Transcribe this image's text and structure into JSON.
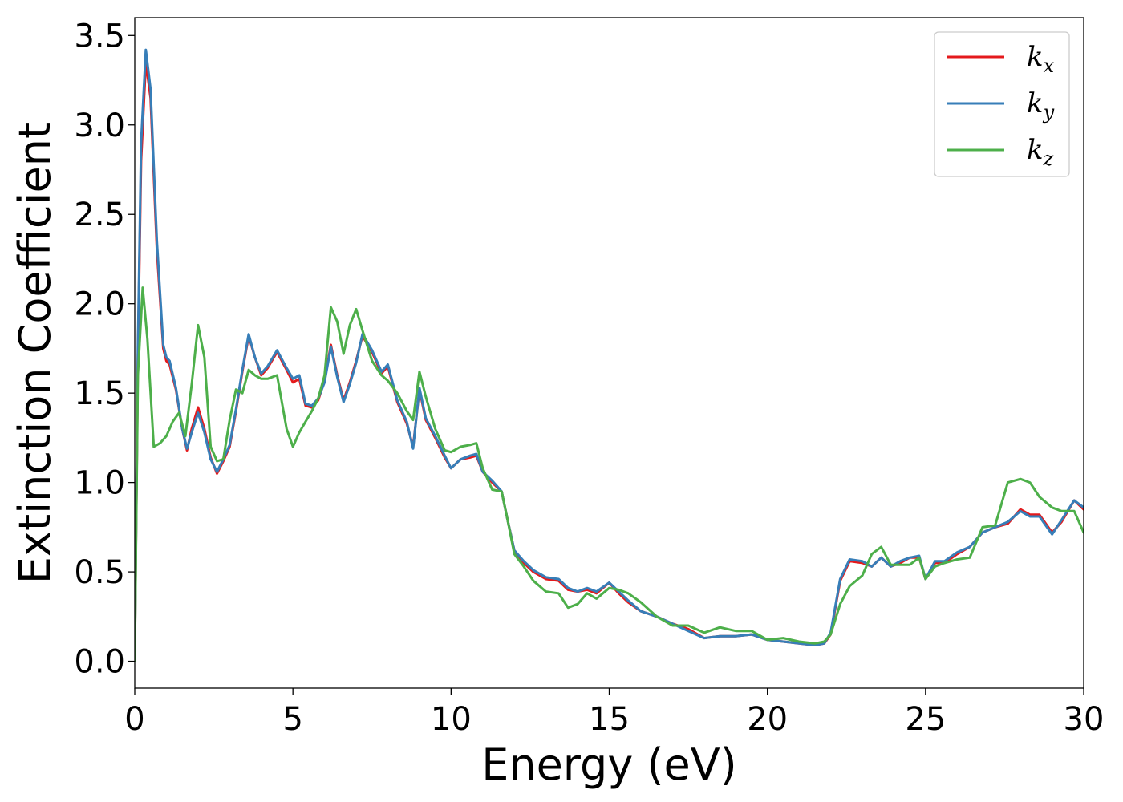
{
  "chart_data": {
    "type": "line",
    "xlabel": "Energy (eV)",
    "ylabel": "Extinction Coefficient",
    "xlim": [
      0,
      30
    ],
    "ylim": [
      -0.15,
      3.6
    ],
    "x_ticks": [
      0,
      5,
      10,
      15,
      20,
      25,
      30
    ],
    "x_tick_labels": [
      "0",
      "5",
      "10",
      "15",
      "20",
      "25",
      "30"
    ],
    "y_ticks": [
      0.0,
      0.5,
      1.0,
      1.5,
      2.0,
      2.5,
      3.0,
      3.5
    ],
    "y_tick_labels": [
      "0.0",
      "0.5",
      "1.0",
      "1.5",
      "2.0",
      "2.5",
      "3.0",
      "3.5"
    ],
    "grid": false,
    "legend_position": "top-right",
    "series": [
      {
        "name": "k",
        "subscript": "x",
        "color": "#e41a1c",
        "x": [
          0,
          0.1,
          0.2,
          0.35,
          0.5,
          0.7,
          0.9,
          1.0,
          1.1,
          1.3,
          1.5,
          1.65,
          1.8,
          2.0,
          2.2,
          2.4,
          2.6,
          2.8,
          3.0,
          3.2,
          3.4,
          3.6,
          3.8,
          4.0,
          4.2,
          4.5,
          4.8,
          5.0,
          5.2,
          5.4,
          5.6,
          5.8,
          6.0,
          6.2,
          6.4,
          6.6,
          6.8,
          7.0,
          7.2,
          7.5,
          7.8,
          8.0,
          8.3,
          8.6,
          8.8,
          9.0,
          9.2,
          9.5,
          9.8,
          10.0,
          10.3,
          10.6,
          10.8,
          11.0,
          11.3,
          11.6,
          11.8,
          12.0,
          12.3,
          12.6,
          13.0,
          13.4,
          13.7,
          14.0,
          14.3,
          14.6,
          15.0,
          15.3,
          15.6,
          16.0,
          16.5,
          17.0,
          17.5,
          18.0,
          18.5,
          19.0,
          19.5,
          20.0,
          20.5,
          21.0,
          21.5,
          21.8,
          22.0,
          22.3,
          22.6,
          23.0,
          23.3,
          23.6,
          23.9,
          24.2,
          24.5,
          24.8,
          25.0,
          25.3,
          25.6,
          26.0,
          26.4,
          26.8,
          27.2,
          27.6,
          28.0,
          28.3,
          28.6,
          29.0,
          29.3,
          29.7,
          30.0
        ],
        "y": [
          0.0,
          1.7,
          2.8,
          3.35,
          3.15,
          2.3,
          1.75,
          1.68,
          1.66,
          1.52,
          1.3,
          1.18,
          1.3,
          1.42,
          1.3,
          1.14,
          1.05,
          1.12,
          1.2,
          1.4,
          1.62,
          1.82,
          1.7,
          1.6,
          1.64,
          1.73,
          1.63,
          1.56,
          1.58,
          1.43,
          1.42,
          1.46,
          1.57,
          1.77,
          1.6,
          1.46,
          1.56,
          1.68,
          1.82,
          1.73,
          1.61,
          1.65,
          1.45,
          1.33,
          1.2,
          1.52,
          1.35,
          1.25,
          1.14,
          1.08,
          1.13,
          1.14,
          1.15,
          1.06,
          1.0,
          0.95,
          0.78,
          0.62,
          0.55,
          0.5,
          0.46,
          0.45,
          0.4,
          0.39,
          0.4,
          0.38,
          0.44,
          0.38,
          0.33,
          0.28,
          0.25,
          0.21,
          0.18,
          0.13,
          0.14,
          0.14,
          0.15,
          0.12,
          0.11,
          0.1,
          0.09,
          0.1,
          0.15,
          0.45,
          0.56,
          0.55,
          0.53,
          0.58,
          0.53,
          0.55,
          0.58,
          0.58,
          0.46,
          0.55,
          0.55,
          0.6,
          0.64,
          0.72,
          0.75,
          0.77,
          0.85,
          0.82,
          0.82,
          0.72,
          0.78,
          0.9,
          0.85
        ]
      },
      {
        "name": "k",
        "subscript": "y",
        "color": "#377eb8",
        "x": [
          0,
          0.1,
          0.2,
          0.35,
          0.5,
          0.7,
          0.9,
          1.0,
          1.1,
          1.3,
          1.5,
          1.65,
          1.8,
          2.0,
          2.2,
          2.4,
          2.6,
          2.8,
          3.0,
          3.2,
          3.4,
          3.6,
          3.8,
          4.0,
          4.2,
          4.5,
          4.8,
          5.0,
          5.2,
          5.4,
          5.6,
          5.8,
          6.0,
          6.2,
          6.4,
          6.6,
          6.8,
          7.0,
          7.2,
          7.5,
          7.8,
          8.0,
          8.3,
          8.6,
          8.8,
          9.0,
          9.2,
          9.5,
          9.8,
          10.0,
          10.3,
          10.6,
          10.8,
          11.0,
          11.3,
          11.6,
          11.8,
          12.0,
          12.3,
          12.6,
          13.0,
          13.4,
          13.7,
          14.0,
          14.3,
          14.6,
          15.0,
          15.3,
          15.6,
          16.0,
          16.5,
          17.0,
          17.5,
          18.0,
          18.5,
          19.0,
          19.5,
          20.0,
          20.5,
          21.0,
          21.5,
          21.8,
          22.0,
          22.3,
          22.6,
          23.0,
          23.3,
          23.6,
          23.9,
          24.2,
          24.5,
          24.8,
          25.0,
          25.3,
          25.6,
          26.0,
          26.4,
          26.8,
          27.2,
          27.6,
          28.0,
          28.3,
          28.6,
          29.0,
          29.3,
          29.7,
          30.0
        ],
        "y": [
          0.0,
          1.75,
          2.9,
          3.42,
          3.2,
          2.35,
          1.77,
          1.7,
          1.68,
          1.53,
          1.3,
          1.19,
          1.28,
          1.39,
          1.28,
          1.13,
          1.06,
          1.13,
          1.21,
          1.41,
          1.63,
          1.83,
          1.7,
          1.61,
          1.65,
          1.74,
          1.64,
          1.58,
          1.6,
          1.44,
          1.43,
          1.47,
          1.56,
          1.76,
          1.59,
          1.45,
          1.55,
          1.67,
          1.83,
          1.74,
          1.62,
          1.66,
          1.46,
          1.34,
          1.19,
          1.53,
          1.36,
          1.26,
          1.15,
          1.08,
          1.13,
          1.15,
          1.16,
          1.06,
          1.01,
          0.95,
          0.78,
          0.62,
          0.56,
          0.51,
          0.47,
          0.46,
          0.41,
          0.39,
          0.41,
          0.39,
          0.44,
          0.39,
          0.34,
          0.28,
          0.25,
          0.21,
          0.17,
          0.13,
          0.14,
          0.14,
          0.15,
          0.12,
          0.11,
          0.1,
          0.09,
          0.1,
          0.16,
          0.46,
          0.57,
          0.56,
          0.53,
          0.58,
          0.53,
          0.56,
          0.58,
          0.59,
          0.46,
          0.56,
          0.56,
          0.61,
          0.64,
          0.72,
          0.75,
          0.78,
          0.84,
          0.81,
          0.81,
          0.71,
          0.79,
          0.9,
          0.86
        ]
      },
      {
        "name": "k",
        "subscript": "z",
        "color": "#4daf4a",
        "x": [
          0,
          0.1,
          0.25,
          0.4,
          0.6,
          0.8,
          1.0,
          1.2,
          1.4,
          1.6,
          1.8,
          2.0,
          2.2,
          2.4,
          2.6,
          2.8,
          3.0,
          3.2,
          3.4,
          3.6,
          3.8,
          4.0,
          4.2,
          4.5,
          4.8,
          5.0,
          5.2,
          5.4,
          5.6,
          5.8,
          6.0,
          6.2,
          6.4,
          6.6,
          6.8,
          7.0,
          7.2,
          7.5,
          7.8,
          8.0,
          8.3,
          8.6,
          8.8,
          9.0,
          9.2,
          9.5,
          9.8,
          10.0,
          10.3,
          10.6,
          10.8,
          11.0,
          11.3,
          11.6,
          11.8,
          12.0,
          12.3,
          12.6,
          13.0,
          13.4,
          13.7,
          14.0,
          14.3,
          14.6,
          15.0,
          15.3,
          15.6,
          16.0,
          16.5,
          17.0,
          17.5,
          18.0,
          18.5,
          19.0,
          19.5,
          20.0,
          20.5,
          21.0,
          21.5,
          21.8,
          22.0,
          22.3,
          22.6,
          23.0,
          23.3,
          23.6,
          23.9,
          24.2,
          24.5,
          24.8,
          25.0,
          25.3,
          25.6,
          26.0,
          26.4,
          26.8,
          27.2,
          27.6,
          28.0,
          28.3,
          28.6,
          29.0,
          29.3,
          29.7,
          30.0
        ],
        "y": [
          0.0,
          1.6,
          2.09,
          1.8,
          1.2,
          1.22,
          1.26,
          1.34,
          1.39,
          1.26,
          1.55,
          1.88,
          1.7,
          1.2,
          1.12,
          1.13,
          1.35,
          1.52,
          1.5,
          1.63,
          1.6,
          1.58,
          1.58,
          1.6,
          1.3,
          1.2,
          1.28,
          1.34,
          1.4,
          1.47,
          1.6,
          1.98,
          1.9,
          1.72,
          1.88,
          1.97,
          1.85,
          1.68,
          1.6,
          1.57,
          1.5,
          1.4,
          1.35,
          1.62,
          1.48,
          1.3,
          1.18,
          1.17,
          1.2,
          1.21,
          1.22,
          1.08,
          0.96,
          0.95,
          0.78,
          0.6,
          0.53,
          0.45,
          0.39,
          0.38,
          0.3,
          0.32,
          0.38,
          0.35,
          0.41,
          0.4,
          0.38,
          0.33,
          0.25,
          0.2,
          0.2,
          0.16,
          0.19,
          0.17,
          0.17,
          0.12,
          0.13,
          0.11,
          0.1,
          0.11,
          0.15,
          0.32,
          0.42,
          0.48,
          0.6,
          0.64,
          0.54,
          0.54,
          0.54,
          0.58,
          0.46,
          0.53,
          0.55,
          0.57,
          0.58,
          0.75,
          0.76,
          1.0,
          1.02,
          1.0,
          0.92,
          0.86,
          0.84,
          0.84,
          0.72
        ]
      }
    ]
  }
}
